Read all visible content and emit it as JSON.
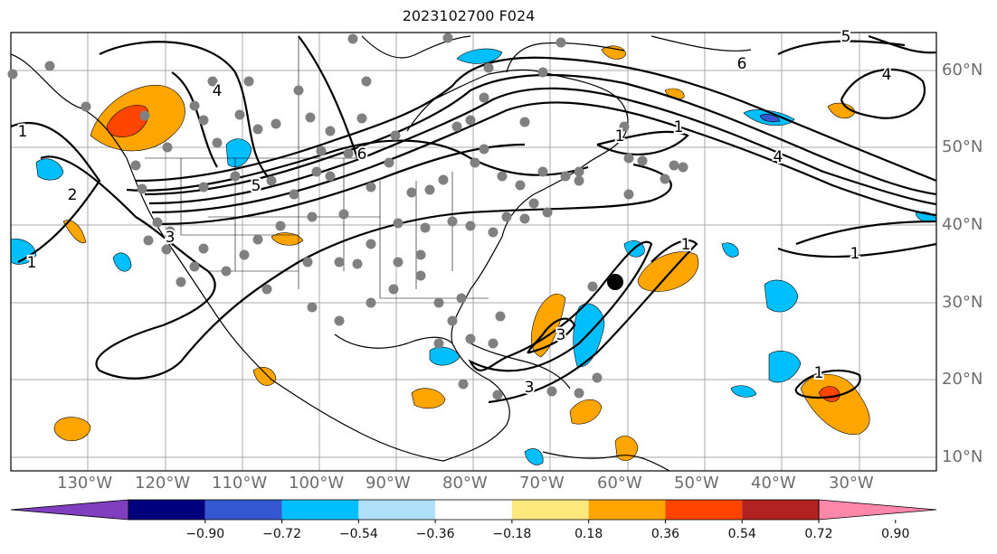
{
  "title": "2023102700 F024",
  "lon_labels": [
    "130°W",
    "120°W",
    "110°W",
    "100°W",
    "90°W",
    "80°W",
    "70°W",
    "60°W",
    "50°W",
    "40°W",
    "30°W"
  ],
  "lat_labels": [
    "60°N",
    "50°N",
    "40°N",
    "30°N",
    "20°N",
    "10°N"
  ],
  "colorbar": {
    "ticks": [
      "−0.90",
      "−0.72",
      "−0.54",
      "−0.36",
      "−0.18",
      "0.18",
      "0.36",
      "0.54",
      "0.72",
      "0.90"
    ],
    "colors": [
      "#7f3fbf",
      "#00007f",
      "#3557d0",
      "#00bfff",
      "#b0e0fa",
      "#ffffff",
      "#ffe97f",
      "#ffa500",
      "#ff4500",
      "#b22222",
      "#ff88aa"
    ]
  },
  "contour_labels": [
    "1",
    "1",
    "2",
    "3",
    "4",
    "5",
    "6",
    "4",
    "4",
    "5",
    "6",
    "1",
    "1",
    "1",
    "3",
    "3",
    "1",
    "1"
  ],
  "colors": {
    "positive": "#ffa500",
    "strong_positive": "#ff4500",
    "negative": "#00bfff",
    "strong_negative": "#3557d0",
    "station": "#808080"
  }
}
